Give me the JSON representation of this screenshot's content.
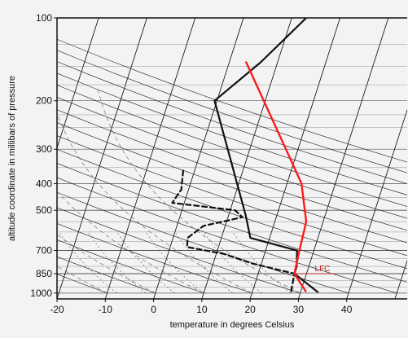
{
  "chart_data": {
    "type": "skew-t log-p diagram",
    "xlabel": "temperature in degrees Celsius",
    "ylabel": "altitude coordinate in millibars of pressure",
    "x_ticks": [
      -20,
      -10,
      0,
      10,
      20,
      30,
      40
    ],
    "y_ticks": [
      100,
      200,
      300,
      400,
      500,
      700,
      850,
      1000
    ],
    "xlim": [
      -20,
      50
    ],
    "ylim": [
      1050,
      100
    ],
    "y_scale": "log",
    "grid": true,
    "colors": {
      "background": "#f3f3f3",
      "frame": "#111111",
      "environment": "#111111",
      "parcel": "#ff1a1a",
      "annotation": "#b82020",
      "dry_adiabats": "#222222",
      "moist_adiabats": "#777777",
      "mixing_ratio": "#444444",
      "isobars": "#555555"
    },
    "series": [
      {
        "name": "",
        "style": "solid-black",
        "x": [
          33.5,
          27.5,
          27.5,
          26.5,
          16.0,
          13.5,
          -0.5,
          6.5,
          13.0
        ],
        "y": [
          990,
          850,
          800,
          700,
          630,
          520,
          200,
          145,
          100
        ]
      },
      {
        "name": "",
        "style": "dashed-black",
        "x": [
          28.0,
          27.5,
          18.0,
          11.5,
          3.5,
          3.0,
          5.5,
          13.0,
          11.0,
          -2.5,
          -1.5,
          -2.5
        ],
        "y": [
          985,
          850,
          780,
          720,
          680,
          630,
          570,
          530,
          500,
          470,
          420,
          350
        ]
      },
      {
        "name": "",
        "style": "solid-red",
        "x": [
          31.0,
          27.5,
          27.0,
          26.5,
          23.0,
          17.5,
          3.5
        ],
        "y": [
          985,
          850,
          700,
          550,
          400,
          300,
          145
        ]
      }
    ],
    "annotations": [
      {
        "text": "LFC",
        "x": 27.5,
        "y": 850
      }
    ]
  }
}
